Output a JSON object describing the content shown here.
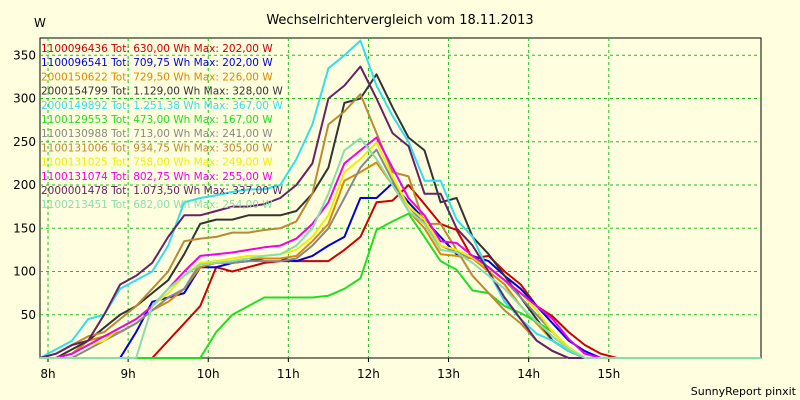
{
  "chart_data": {
    "type": "line",
    "title": "Wechselrichtervergleich vom 18.11.2013",
    "ylabel": "W",
    "xlabel": "",
    "xlim": [
      7.9,
      16.9
    ],
    "ylim": [
      0,
      370
    ],
    "y_ticks": [
      50,
      100,
      150,
      200,
      250,
      300,
      350
    ],
    "x_ticks": [
      {
        "value": 8,
        "label": "8h"
      },
      {
        "value": 9,
        "label": "9h"
      },
      {
        "value": 10,
        "label": "10h"
      },
      {
        "value": 11,
        "label": "11h"
      },
      {
        "value": 12,
        "label": "12h"
      },
      {
        "value": 13,
        "label": "13h"
      },
      {
        "value": 14,
        "label": "14h"
      },
      {
        "value": 15,
        "label": "15h"
      }
    ],
    "grid": true,
    "legend_position": "top-left",
    "footer": "SunnyReport pinxit",
    "x": [
      7.9,
      8.1,
      8.3,
      8.5,
      8.7,
      8.9,
      9.1,
      9.3,
      9.5,
      9.7,
      9.9,
      10.1,
      10.3,
      10.5,
      10.7,
      10.9,
      11.1,
      11.3,
      11.5,
      11.7,
      11.9,
      12.1,
      12.3,
      12.5,
      12.7,
      12.9,
      13.1,
      13.3,
      13.5,
      13.7,
      13.9,
      14.1,
      14.3,
      14.5,
      14.7,
      14.9,
      15.1,
      15.3,
      15.5,
      15.7,
      15.9,
      16.1,
      16.3,
      16.5,
      16.7,
      16.9
    ],
    "series": [
      {
        "name": "1100096436 Tot: 630,00 Wh Max: 202,00 W",
        "color": "#cc0000",
        "values": [
          0,
          0,
          0,
          0,
          0,
          0,
          0,
          0,
          20,
          40,
          60,
          105,
          100,
          105,
          110,
          112,
          112,
          112,
          112,
          125,
          140,
          180,
          182,
          200,
          178,
          155,
          148,
          115,
          118,
          100,
          85,
          60,
          48,
          30,
          15,
          5,
          0,
          0,
          0,
          0,
          0,
          0,
          0,
          0,
          0,
          0
        ]
      },
      {
        "name": "1100096541 Tot: 709,75 Wh Max: 202,00 W",
        "color": "#0000dd",
        "values": [
          0,
          0,
          0,
          0,
          0,
          0,
          30,
          65,
          70,
          75,
          105,
          105,
          110,
          112,
          115,
          115,
          112,
          118,
          130,
          140,
          185,
          185,
          202,
          180,
          160,
          140,
          120,
          118,
          112,
          95,
          80,
          60,
          40,
          20,
          8,
          0,
          0,
          0,
          0,
          0,
          0,
          0,
          0,
          0,
          0,
          0
        ]
      },
      {
        "name": "2000150622 Tot: 729,50 Wh Max: 226,00 W",
        "color": "#dd8800",
        "values": [
          0,
          0,
          5,
          20,
          25,
          30,
          40,
          55,
          65,
          80,
          105,
          110,
          112,
          115,
          115,
          115,
          118,
          135,
          155,
          205,
          215,
          226,
          200,
          170,
          150,
          120,
          118,
          115,
          100,
          85,
          60,
          40,
          20,
          8,
          0,
          0,
          0,
          0,
          0,
          0,
          0,
          0,
          0,
          0,
          0,
          0
        ]
      },
      {
        "name": "2000154799 Tot: 1.129,00 Wh Max: 328,00 W",
        "color": "#333333",
        "values": [
          0,
          0,
          10,
          20,
          35,
          50,
          60,
          75,
          90,
          120,
          155,
          160,
          160,
          165,
          165,
          165,
          170,
          190,
          220,
          295,
          300,
          328,
          290,
          255,
          240,
          180,
          185,
          140,
          120,
          95,
          70,
          45,
          20,
          8,
          0,
          0,
          0,
          0,
          0,
          0,
          0,
          0,
          0,
          0,
          0,
          0
        ]
      },
      {
        "name": "2000149892 Tot: 1.251,38 Wh Max: 367,00 W",
        "color": "#33ddee",
        "values": [
          0,
          10,
          20,
          45,
          50,
          80,
          90,
          100,
          130,
          180,
          185,
          188,
          192,
          195,
          195,
          200,
          230,
          270,
          335,
          350,
          367,
          315,
          280,
          250,
          205,
          205,
          160,
          140,
          100,
          65,
          45,
          28,
          20,
          8,
          0,
          0,
          0,
          0,
          0,
          0,
          0,
          0,
          0,
          0,
          0,
          0
        ]
      },
      {
        "name": "1100129553 Tot: 473,00 Wh Max: 167,00 W",
        "color": "#22dd22",
        "values": [
          0,
          0,
          0,
          0,
          0,
          0,
          0,
          0,
          0,
          0,
          0,
          30,
          50,
          60,
          70,
          70,
          70,
          70,
          72,
          80,
          92,
          148,
          158,
          167,
          140,
          112,
          102,
          78,
          75,
          60,
          52,
          42,
          30,
          12,
          0,
          0,
          0,
          0,
          0,
          0,
          0,
          0,
          0,
          0,
          0,
          0
        ]
      },
      {
        "name": "1100130988 Tot: 713,00 Wh Max: 241,00 W",
        "color": "#888888",
        "values": [
          0,
          0,
          0,
          10,
          20,
          30,
          40,
          55,
          70,
          80,
          110,
          110,
          110,
          112,
          112,
          112,
          115,
          130,
          150,
          185,
          220,
          241,
          205,
          175,
          155,
          130,
          122,
          116,
          104,
          90,
          70,
          50,
          30,
          12,
          0,
          0,
          0,
          0,
          0,
          0,
          0,
          0,
          0,
          0,
          0,
          0
        ]
      },
      {
        "name": "1100131006 Tot: 934,75 Wh Max: 305,00 W",
        "color": "#bb8833",
        "values": [
          0,
          5,
          15,
          25,
          30,
          45,
          60,
          80,
          100,
          135,
          138,
          140,
          145,
          145,
          148,
          150,
          158,
          190,
          270,
          285,
          305,
          260,
          215,
          210,
          155,
          155,
          125,
          95,
          75,
          55,
          40,
          20,
          8,
          0,
          0,
          0,
          0,
          0,
          0,
          0,
          0,
          0,
          0,
          0,
          0,
          0
        ]
      },
      {
        "name": "1100131025 Tot: 758,00 Wh Max: 249,00 W",
        "color": "#eeee00",
        "values": [
          0,
          0,
          5,
          15,
          20,
          35,
          45,
          60,
          75,
          95,
          110,
          112,
          115,
          118,
          118,
          120,
          125,
          140,
          165,
          215,
          230,
          249,
          210,
          175,
          160,
          130,
          125,
          116,
          104,
          90,
          75,
          55,
          30,
          12,
          0,
          0,
          0,
          0,
          0,
          0,
          0,
          0,
          0,
          0,
          0,
          0
        ]
      },
      {
        "name": "1100131074 Tot: 802,75 Wh Max: 255,00 W",
        "color": "#ee00ee",
        "values": [
          0,
          0,
          5,
          15,
          25,
          35,
          45,
          60,
          80,
          100,
          118,
          120,
          122,
          125,
          128,
          130,
          138,
          155,
          180,
          225,
          240,
          255,
          220,
          185,
          165,
          135,
          133,
          118,
          105,
          90,
          75,
          60,
          45,
          22,
          5,
          0,
          0,
          0,
          0,
          0,
          0,
          0,
          0,
          0,
          0,
          0
        ]
      },
      {
        "name": "2000001478 Tot: 1.073,50 Wh Max: 337,00 W",
        "color": "#662266",
        "values": [
          0,
          5,
          15,
          20,
          50,
          85,
          95,
          110,
          140,
          165,
          165,
          170,
          175,
          175,
          178,
          185,
          200,
          225,
          300,
          315,
          337,
          300,
          260,
          245,
          190,
          190,
          150,
          130,
          100,
          70,
          45,
          20,
          8,
          0,
          0,
          0,
          0,
          0,
          0,
          0,
          0,
          0,
          0,
          0,
          0,
          0
        ]
      },
      {
        "name": "1100213451 Tot: 682,00 Wh Max: 254,00 W",
        "color": "#88ddaa",
        "values": [
          0,
          0,
          0,
          0,
          0,
          0,
          0,
          60,
          80,
          95,
          108,
          110,
          112,
          115,
          118,
          120,
          130,
          150,
          190,
          240,
          254,
          230,
          200,
          170,
          155,
          125,
          122,
          110,
          95,
          80,
          60,
          42,
          25,
          10,
          0,
          0,
          0,
          0,
          0,
          0,
          0,
          0,
          0,
          0,
          0,
          0
        ]
      }
    ]
  }
}
